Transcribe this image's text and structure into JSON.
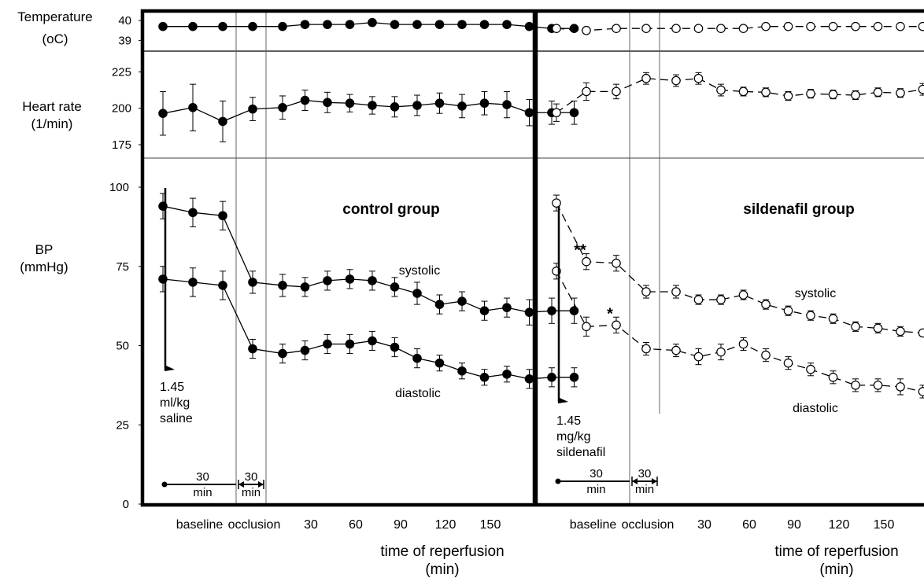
{
  "chart_data": {
    "type": "line",
    "time_points": [
      -50,
      -30,
      -10,
      10,
      30,
      45,
      60,
      75,
      90,
      105,
      120,
      135,
      150,
      165,
      180,
      195,
      210,
      225
    ],
    "x_ticks": [
      30,
      60,
      90,
      120,
      150
    ],
    "x_labels": {
      "baseline": "baseline",
      "occlusion": "occlusion",
      "reperfusion_line1": "time of reperfusion",
      "reperfusion_line2": "(min)"
    },
    "row_labels": {
      "temperature": [
        "Temperature",
        "(oC)"
      ],
      "heart_rate": [
        "Heart rate",
        "(1/min)"
      ],
      "bp": [
        "BP",
        "(mmHg)"
      ]
    },
    "y_ticks": {
      "temperature": [
        "40",
        "39"
      ],
      "heart_rate": [
        "225",
        "200",
        "175"
      ],
      "bp": [
        "100",
        "75",
        "50",
        "25",
        "0"
      ]
    },
    "ylim": {
      "temperature": [
        38.5,
        40.4
      ],
      "heart_rate": [
        165,
        234
      ],
      "bp": [
        0,
        100
      ]
    },
    "panels": [
      {
        "title": "control group",
        "marker": "filled",
        "dashed": false,
        "temperature": [
          39.7,
          39.7,
          39.7,
          39.7,
          39.7,
          39.8,
          39.8,
          39.8,
          39.9,
          39.8,
          39.8,
          39.8,
          39.8,
          39.8,
          39.8,
          39.7,
          39.6,
          39.6
        ],
        "temperature_err": [
          0.12,
          0.12,
          0.12,
          0.12,
          0.12,
          0.12,
          0.12,
          0.12,
          0.12,
          0.12,
          0.12,
          0.12,
          0.12,
          0.12,
          0.12,
          0.15,
          0.15,
          0.15
        ],
        "heart_rate": [
          196.5,
          200.5,
          191,
          199.5,
          200.5,
          205.5,
          204,
          203.5,
          202,
          201,
          202,
          203.5,
          201.5,
          203.5,
          202.5,
          197,
          197,
          197
        ],
        "heart_rate_err": [
          15,
          16,
          14,
          8,
          8,
          7,
          7,
          6,
          6,
          7,
          7,
          7,
          8,
          8,
          9,
          9,
          8,
          8
        ],
        "series": [
          {
            "name": "systolic",
            "values": [
              94,
              92,
              91,
              70,
              69,
              68.5,
              70.5,
              71,
              70.5,
              68.5,
              66.5,
              63,
              64,
              61,
              62,
              60.5,
              61,
              61
            ],
            "err": [
              4,
              4.5,
              4.5,
              3.5,
              3.5,
              3,
              3,
              3,
              3,
              3,
              3.5,
              3,
              3,
              3,
              3,
              4,
              4,
              4
            ]
          },
          {
            "name": "diastolic",
            "values": [
              71,
              70,
              69,
              49,
              47.5,
              48.5,
              50.5,
              50.5,
              51.5,
              49.5,
              46,
              44.5,
              42,
              40,
              41,
              39.5,
              40,
              40
            ],
            "err": [
              4,
              4.5,
              4.5,
              3,
              3,
              3,
              3,
              3,
              3,
              3,
              3,
              2.5,
              2.5,
              2.5,
              2.5,
              3,
              3,
              3
            ]
          }
        ],
        "dose": [
          "1.45",
          "ml/kg",
          "saline"
        ]
      },
      {
        "title": "sildenafil group",
        "marker": "open",
        "dashed": true,
        "temperature": [
          39.6,
          39.5,
          39.6,
          39.6,
          39.6,
          39.6,
          39.6,
          39.6,
          39.7,
          39.7,
          39.7,
          39.7,
          39.7,
          39.7,
          39.7,
          39.7,
          39.7,
          39.7
        ],
        "temperature_err": [
          0.05,
          0.05,
          0.05,
          0.05,
          0.05,
          0.05,
          0.05,
          0.05,
          0.05,
          0.05,
          0.05,
          0.05,
          0.05,
          0.05,
          0.05,
          0.05,
          0.05,
          0.05
        ],
        "heart_rate": [
          197,
          211.5,
          211.5,
          220.5,
          219,
          220.5,
          212.5,
          211.5,
          211,
          208.5,
          210,
          209.5,
          209,
          211,
          210.5,
          213,
          213,
          213
        ],
        "heart_rate_err": [
          6,
          6,
          5,
          4,
          4,
          4,
          4,
          3,
          3,
          3,
          3,
          3,
          3,
          3,
          3,
          4,
          4,
          4
        ],
        "series": [
          {
            "name": "systolic",
            "values": [
              95,
              76.5,
              76,
              67,
              67,
              64.5,
              64.5,
              66,
              63,
              61,
              59.5,
              58.5,
              56,
              55.5,
              54.5,
              54,
              54,
              54
            ],
            "err": [
              2.5,
              2.5,
              2.5,
              2,
              2,
              1.5,
              1.5,
              1.5,
              1.5,
              1.5,
              1.5,
              1.5,
              1.5,
              1.5,
              1.5,
              1,
              1,
              1
            ]
          },
          {
            "name": "diastolic",
            "values": [
              73.5,
              56,
              56.5,
              49,
              48.5,
              46.5,
              48,
              50.5,
              47,
              44.5,
              42.5,
              40,
              37.5,
              37.5,
              37,
              35.5,
              35.5,
              35.5
            ],
            "err": [
              2.5,
              3,
              2.5,
              2,
              2,
              2.5,
              2.5,
              2,
              2,
              2,
              2,
              2,
              2,
              2,
              2.5,
              2,
              2,
              2
            ]
          }
        ],
        "dose": [
          "1.45",
          "mg/kg",
          "sildenafil"
        ],
        "significance": [
          {
            "series": 0,
            "index": 1,
            "text": "**"
          },
          {
            "series": 1,
            "index": 2,
            "text": "*"
          }
        ]
      }
    ],
    "interval_labels": {
      "baseline_top": "30",
      "baseline_bottom": "min",
      "occlusion_top": "30",
      "occlusion_bottom": "min"
    },
    "line_labels": {
      "systolic": "systolic",
      "diastolic": "diastolic"
    }
  }
}
